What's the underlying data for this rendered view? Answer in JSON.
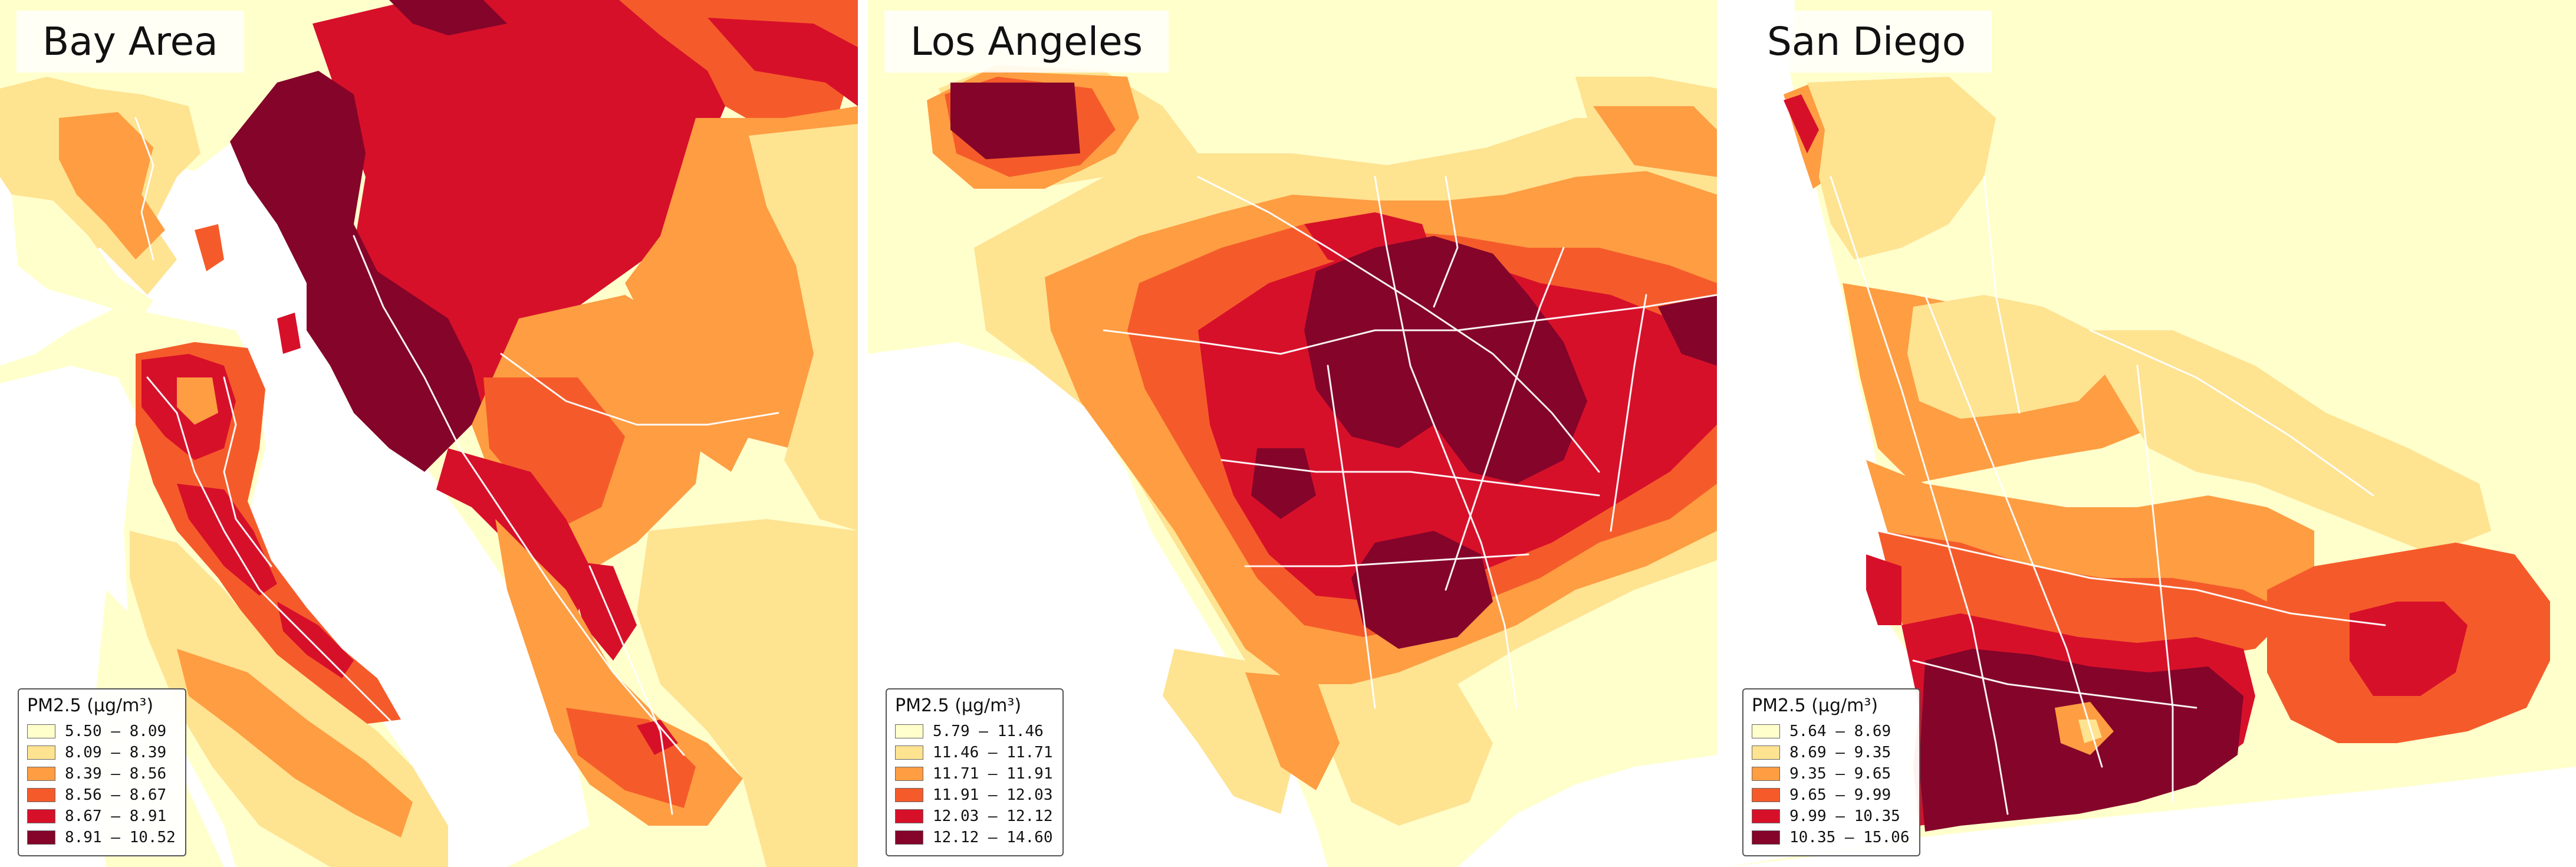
{
  "panels": [
    {
      "title": "Bay Area",
      "legend_title": "PM2.5 (µg/m³)",
      "classes": [
        "5.50 – 8.09",
        "8.09 – 8.39",
        "8.39 – 8.56",
        "8.56 – 8.67",
        "8.67 – 8.91",
        "8.91 – 10.52"
      ]
    },
    {
      "title": "Los Angeles",
      "legend_title": "PM2.5 (µg/m³)",
      "classes": [
        "5.79 – 11.46",
        "11.46 – 11.71",
        "11.71 – 11.91",
        "11.91 – 12.03",
        "12.03 – 12.12",
        "12.12 – 14.60"
      ]
    },
    {
      "title": "San Diego",
      "legend_title": "PM2.5 (µg/m³)",
      "classes": [
        "5.64 – 8.69",
        "8.69 – 9.35",
        "9.35 – 9.65",
        "9.65 – 9.99",
        "9.99 – 10.35",
        "10.35 – 15.06"
      ]
    }
  ],
  "palette": [
    "#ffffcc",
    "#fee391",
    "#fe9d42",
    "#f55b2a",
    "#d7102a",
    "#84042a"
  ]
}
